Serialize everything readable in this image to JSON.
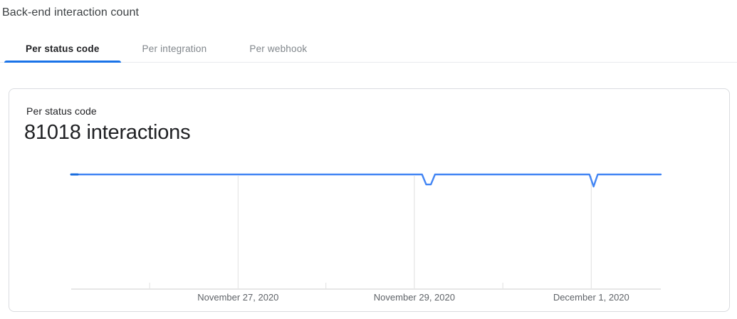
{
  "page": {
    "title": "Back-end interaction count"
  },
  "tabs": [
    {
      "label": "Per status code",
      "active": true
    },
    {
      "label": "Per integration",
      "active": false
    },
    {
      "label": "Per webhook",
      "active": false
    }
  ],
  "card": {
    "subtitle": "Per status code",
    "metric": "81018 interactions"
  },
  "colors": {
    "accent": "#1a73e8",
    "line": "#4285f4",
    "line_start_marker": "#1a6dde",
    "grid": "#e0e0e0",
    "axis": "#e6e6e6",
    "axis_label": "#5f6368",
    "active_tab_text": "#202124",
    "inactive_tab_text": "#80868b",
    "card_border": "#dadce0"
  },
  "chart_data": {
    "type": "line",
    "title": "Per status code",
    "total_label": "81018 interactions",
    "ylabel": "",
    "xlabel": "",
    "grid": "vertical-only",
    "legend_position": "none",
    "ylim_relative": [
      0,
      1
    ],
    "x_ticks": [
      {
        "label": "November 27, 2020",
        "pos": 0.283
      },
      {
        "label": "November 29, 2020",
        "pos": 0.582
      },
      {
        "label": "December 1, 2020",
        "pos": 0.882
      }
    ],
    "minor_tick_positions": [
      0.133,
      0.432,
      0.732
    ],
    "series": [
      {
        "name": "interactions",
        "points": [
          {
            "x": 0.0,
            "y": 1.0
          },
          {
            "x": 0.595,
            "y": 1.0
          },
          {
            "x": 0.602,
            "y": 0.912
          },
          {
            "x": 0.61,
            "y": 0.912
          },
          {
            "x": 0.617,
            "y": 1.0
          },
          {
            "x": 0.879,
            "y": 1.0
          },
          {
            "x": 0.886,
            "y": 0.894
          },
          {
            "x": 0.893,
            "y": 1.0
          },
          {
            "x": 1.0,
            "y": 1.0
          }
        ]
      }
    ]
  }
}
